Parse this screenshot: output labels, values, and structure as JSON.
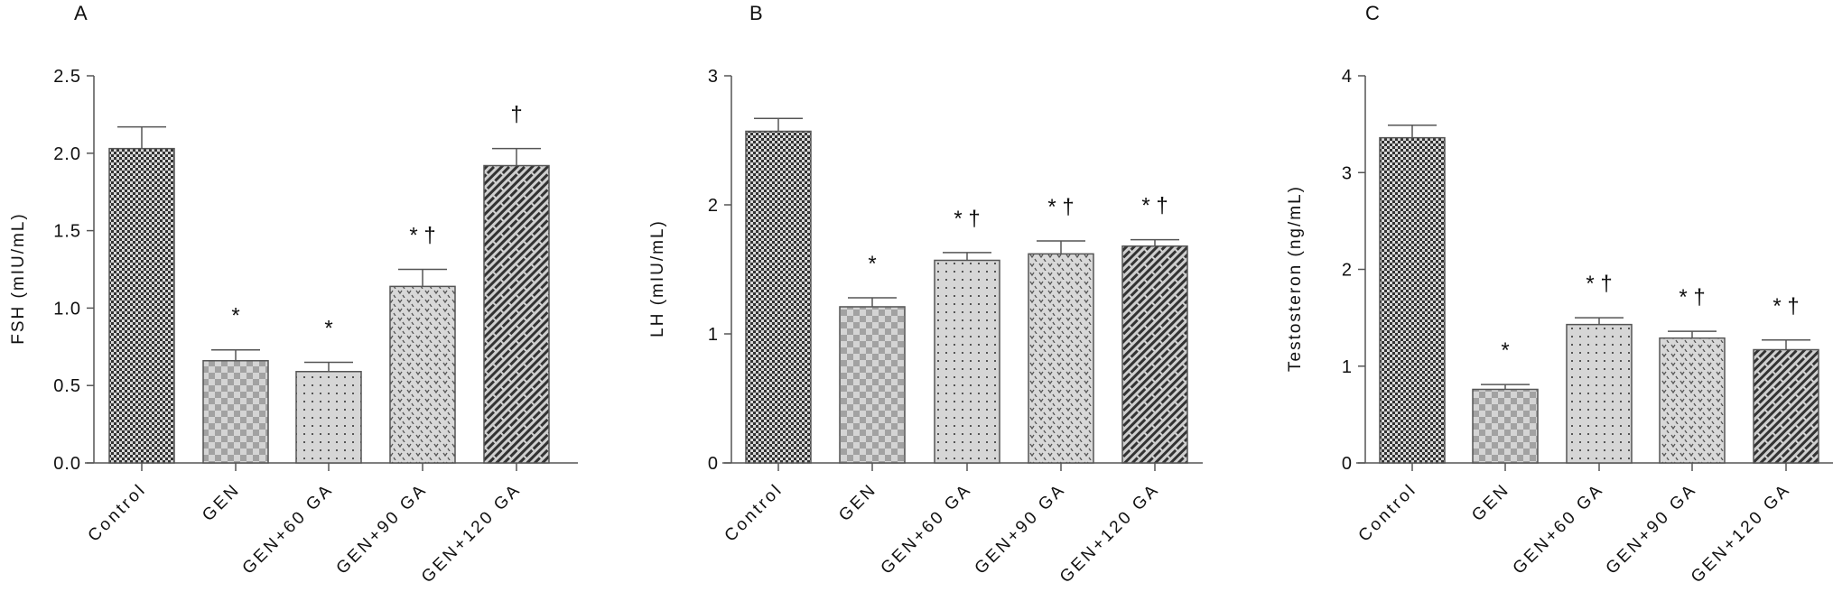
{
  "chart_data": [
    {
      "type": "bar",
      "panel_label": "A",
      "ylabel": "FSH (mIU/mL)",
      "categories": [
        "Control",
        "GEN",
        "GEN+60 GA",
        "GEN+90 GA",
        "GEN+120 GA"
      ],
      "values": [
        2.03,
        0.66,
        0.59,
        1.14,
        1.92
      ],
      "error_upper": [
        0.14,
        0.07,
        0.06,
        0.11,
        0.11
      ],
      "annotations": [
        "",
        "*",
        "*",
        "* †",
        "†"
      ],
      "ylim": [
        0,
        2.5
      ],
      "yticks": [
        "0.0",
        "0.5",
        "1.0",
        "1.5",
        "2.0",
        "2.5"
      ],
      "grid": false
    },
    {
      "type": "bar",
      "panel_label": "B",
      "ylabel": "LH (mIU/mL)",
      "categories": [
        "Control",
        "GEN",
        "GEN+60 GA",
        "GEN+90 GA",
        "GEN+120 GA"
      ],
      "values": [
        2.57,
        1.21,
        1.57,
        1.62,
        1.68
      ],
      "error_upper": [
        0.1,
        0.07,
        0.06,
        0.1,
        0.05
      ],
      "annotations": [
        "",
        "*",
        "* †",
        "* †",
        "* †"
      ],
      "ylim": [
        0,
        3
      ],
      "yticks": [
        "0",
        "1",
        "2",
        "3"
      ],
      "grid": false
    },
    {
      "type": "bar",
      "panel_label": "C",
      "ylabel": "Testosteron (ng/mL)",
      "categories": [
        "Control",
        "GEN",
        "GEN+60 GA",
        "GEN+90 GA",
        "GEN+120 GA"
      ],
      "values": [
        3.36,
        0.76,
        1.43,
        1.29,
        1.17
      ],
      "error_upper": [
        0.13,
        0.05,
        0.07,
        0.07,
        0.1
      ],
      "annotations": [
        "",
        "*",
        "* †",
        "* †",
        "* †"
      ],
      "ylim": [
        0,
        4
      ],
      "yticks": [
        "0",
        "1",
        "2",
        "3",
        "4"
      ],
      "grid": false
    }
  ],
  "colors": {
    "axis": "#555555",
    "bar_outline": "#555555",
    "bar_fill": "#d6d6d6",
    "pattern_dark": "#3a3a3a"
  }
}
